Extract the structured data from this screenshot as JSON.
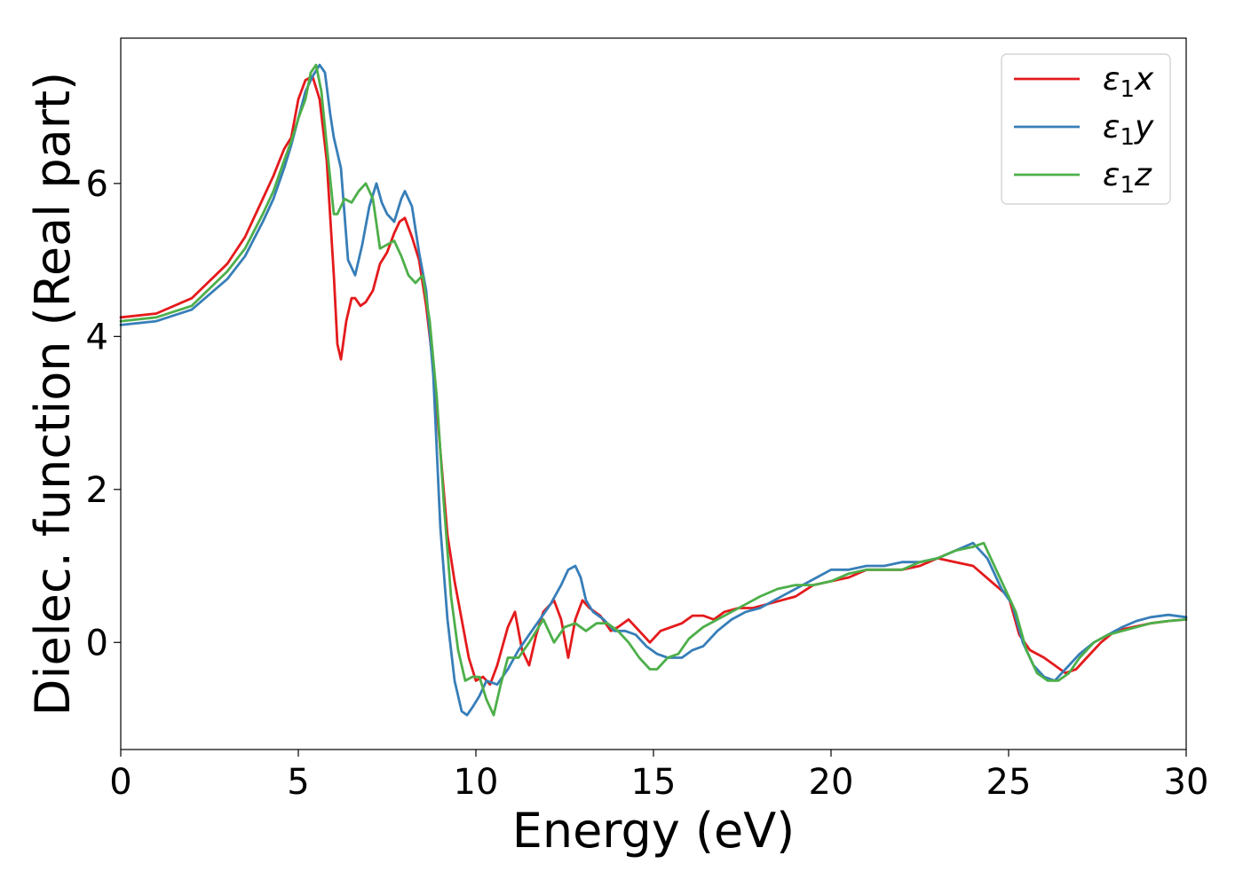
{
  "chart_data": {
    "type": "line",
    "xlabel": "Energy (eV)",
    "ylabel": "Dielec. function (Real part)",
    "xlim": [
      0,
      30
    ],
    "ylim": [
      -1.4,
      7.9
    ],
    "xticks": [
      0,
      5,
      10,
      15,
      20,
      25,
      30
    ],
    "yticks": [
      0,
      2,
      4,
      6
    ],
    "grid": false,
    "legend_position": "top-right",
    "series": [
      {
        "name": "ε₁x",
        "legend": {
          "base": "ε",
          "sub": "1",
          "suffix": "x"
        },
        "color": "#e41a1c",
        "x": [
          0,
          1,
          2,
          3,
          3.5,
          4,
          4.3,
          4.6,
          4.8,
          5.0,
          5.2,
          5.4,
          5.6,
          5.8,
          6.0,
          6.1,
          6.2,
          6.35,
          6.5,
          6.6,
          6.75,
          6.9,
          7.1,
          7.3,
          7.5,
          7.7,
          7.85,
          8.0,
          8.2,
          8.4,
          8.6,
          8.8,
          9.0,
          9.2,
          9.4,
          9.6,
          9.8,
          10.0,
          10.2,
          10.4,
          10.6,
          10.9,
          11.1,
          11.3,
          11.5,
          11.7,
          11.9,
          12.2,
          12.4,
          12.6,
          12.8,
          13.0,
          13.2,
          13.5,
          13.8,
          14.0,
          14.3,
          14.6,
          14.9,
          15.2,
          15.5,
          15.8,
          16.1,
          16.4,
          16.7,
          17.0,
          17.4,
          17.8,
          18.2,
          18.6,
          19.0,
          19.5,
          20.0,
          20.5,
          21.0,
          21.5,
          22.0,
          22.5,
          23.0,
          23.5,
          24.0,
          24.5,
          25.0,
          25.3,
          25.6,
          26.0,
          26.3,
          26.6,
          26.9,
          27.2,
          27.6,
          28.0,
          28.5,
          29.0,
          29.5,
          30.0
        ],
        "y": [
          4.25,
          4.3,
          4.5,
          4.95,
          5.3,
          5.8,
          6.1,
          6.45,
          6.6,
          7.1,
          7.35,
          7.4,
          7.1,
          6.3,
          4.8,
          3.9,
          3.7,
          4.2,
          4.5,
          4.5,
          4.4,
          4.45,
          4.6,
          4.95,
          5.1,
          5.35,
          5.5,
          5.55,
          5.3,
          5.0,
          4.4,
          3.6,
          2.5,
          1.4,
          0.8,
          0.3,
          -0.2,
          -0.5,
          -0.45,
          -0.55,
          -0.3,
          0.2,
          0.4,
          -0.1,
          -0.3,
          0.1,
          0.4,
          0.55,
          0.3,
          -0.2,
          0.3,
          0.55,
          0.45,
          0.35,
          0.15,
          0.2,
          0.3,
          0.15,
          0.0,
          0.15,
          0.2,
          0.25,
          0.35,
          0.35,
          0.3,
          0.4,
          0.45,
          0.45,
          0.5,
          0.55,
          0.6,
          0.75,
          0.8,
          0.85,
          0.95,
          0.95,
          0.95,
          1.0,
          1.1,
          1.05,
          1.0,
          0.8,
          0.6,
          0.1,
          -0.1,
          -0.2,
          -0.3,
          -0.4,
          -0.35,
          -0.2,
          0.0,
          0.15,
          0.2,
          0.25,
          0.28,
          0.3
        ]
      },
      {
        "name": "ε₁y",
        "legend": {
          "base": "ε",
          "sub": "1",
          "suffix": "y"
        },
        "color": "#377eb8",
        "x": [
          0,
          1,
          2,
          3,
          3.5,
          4,
          4.3,
          4.6,
          4.8,
          5.0,
          5.2,
          5.4,
          5.6,
          5.75,
          5.9,
          6.0,
          6.2,
          6.4,
          6.6,
          6.8,
          7.0,
          7.2,
          7.35,
          7.5,
          7.7,
          7.9,
          8.0,
          8.2,
          8.4,
          8.6,
          8.8,
          9.0,
          9.2,
          9.4,
          9.6,
          9.75,
          9.9,
          10.1,
          10.3,
          10.6,
          10.9,
          11.2,
          11.5,
          11.8,
          12.1,
          12.4,
          12.6,
          12.8,
          12.95,
          13.1,
          13.3,
          13.6,
          13.9,
          14.2,
          14.5,
          14.8,
          15.1,
          15.4,
          15.8,
          16.1,
          16.4,
          16.8,
          17.2,
          17.6,
          18.0,
          18.4,
          18.8,
          19.2,
          19.6,
          20.0,
          20.5,
          21.0,
          21.5,
          22.0,
          22.5,
          23.0,
          23.5,
          24.0,
          24.4,
          24.8,
          25.1,
          25.4,
          25.7,
          26.0,
          26.3,
          26.6,
          27.0,
          27.4,
          27.8,
          28.2,
          28.6,
          29.0,
          29.5,
          30.0
        ],
        "y": [
          4.15,
          4.2,
          4.35,
          4.75,
          5.05,
          5.5,
          5.8,
          6.2,
          6.5,
          6.85,
          7.2,
          7.4,
          7.55,
          7.45,
          6.9,
          6.6,
          6.2,
          5.0,
          4.8,
          5.2,
          5.7,
          6.0,
          5.75,
          5.6,
          5.5,
          5.8,
          5.9,
          5.7,
          5.1,
          4.6,
          3.5,
          1.5,
          0.3,
          -0.5,
          -0.9,
          -0.95,
          -0.85,
          -0.7,
          -0.5,
          -0.55,
          -0.35,
          -0.1,
          0.1,
          0.3,
          0.5,
          0.75,
          0.95,
          1.0,
          0.85,
          0.55,
          0.4,
          0.3,
          0.15,
          0.15,
          0.1,
          -0.05,
          -0.15,
          -0.2,
          -0.2,
          -0.1,
          -0.05,
          0.15,
          0.3,
          0.4,
          0.45,
          0.55,
          0.65,
          0.75,
          0.85,
          0.95,
          0.95,
          1.0,
          1.0,
          1.05,
          1.05,
          1.1,
          1.2,
          1.3,
          1.1,
          0.7,
          0.5,
          0.0,
          -0.3,
          -0.45,
          -0.5,
          -0.35,
          -0.15,
          0.0,
          0.1,
          0.2,
          0.28,
          0.33,
          0.36,
          0.33
        ]
      },
      {
        "name": "ε₁z",
        "legend": {
          "base": "ε",
          "sub": "1",
          "suffix": "z"
        },
        "color": "#4daf4a",
        "x": [
          0,
          1,
          2,
          3,
          3.5,
          4,
          4.3,
          4.6,
          4.8,
          5.0,
          5.2,
          5.35,
          5.5,
          5.65,
          5.8,
          6.0,
          6.1,
          6.3,
          6.5,
          6.7,
          6.9,
          7.1,
          7.3,
          7.5,
          7.7,
          7.9,
          8.1,
          8.3,
          8.5,
          8.7,
          8.9,
          9.1,
          9.3,
          9.5,
          9.7,
          9.9,
          10.1,
          10.3,
          10.5,
          10.7,
          10.9,
          11.2,
          11.5,
          11.9,
          12.2,
          12.5,
          12.8,
          13.1,
          13.4,
          13.7,
          14.0,
          14.3,
          14.6,
          14.9,
          15.1,
          15.4,
          15.7,
          16.0,
          16.4,
          16.8,
          17.2,
          17.6,
          18.0,
          18.5,
          19.0,
          19.5,
          20.0,
          20.5,
          21.0,
          21.5,
          22.0,
          22.5,
          23.0,
          23.5,
          24.0,
          24.3,
          24.6,
          24.9,
          25.2,
          25.5,
          25.8,
          26.1,
          26.4,
          26.7,
          27.0,
          27.4,
          27.8,
          28.2,
          28.6,
          29.0,
          29.5,
          30.0
        ],
        "y": [
          4.2,
          4.25,
          4.4,
          4.85,
          5.15,
          5.6,
          5.9,
          6.3,
          6.55,
          6.85,
          7.1,
          7.45,
          7.55,
          7.2,
          6.5,
          5.6,
          5.6,
          5.8,
          5.75,
          5.9,
          6.0,
          5.8,
          5.15,
          5.2,
          5.25,
          5.05,
          4.8,
          4.7,
          4.8,
          4.2,
          3.2,
          1.8,
          0.6,
          -0.1,
          -0.5,
          -0.45,
          -0.45,
          -0.75,
          -0.95,
          -0.55,
          -0.2,
          -0.2,
          0.0,
          0.3,
          0.0,
          0.2,
          0.25,
          0.15,
          0.25,
          0.25,
          0.15,
          0.0,
          -0.2,
          -0.35,
          -0.35,
          -0.2,
          -0.15,
          0.05,
          0.2,
          0.3,
          0.4,
          0.5,
          0.6,
          0.7,
          0.75,
          0.75,
          0.8,
          0.9,
          0.95,
          0.95,
          0.95,
          1.05,
          1.1,
          1.2,
          1.25,
          1.3,
          1.0,
          0.7,
          0.4,
          -0.1,
          -0.4,
          -0.5,
          -0.5,
          -0.4,
          -0.2,
          0.0,
          0.1,
          0.15,
          0.2,
          0.25,
          0.28,
          0.3
        ]
      }
    ]
  }
}
